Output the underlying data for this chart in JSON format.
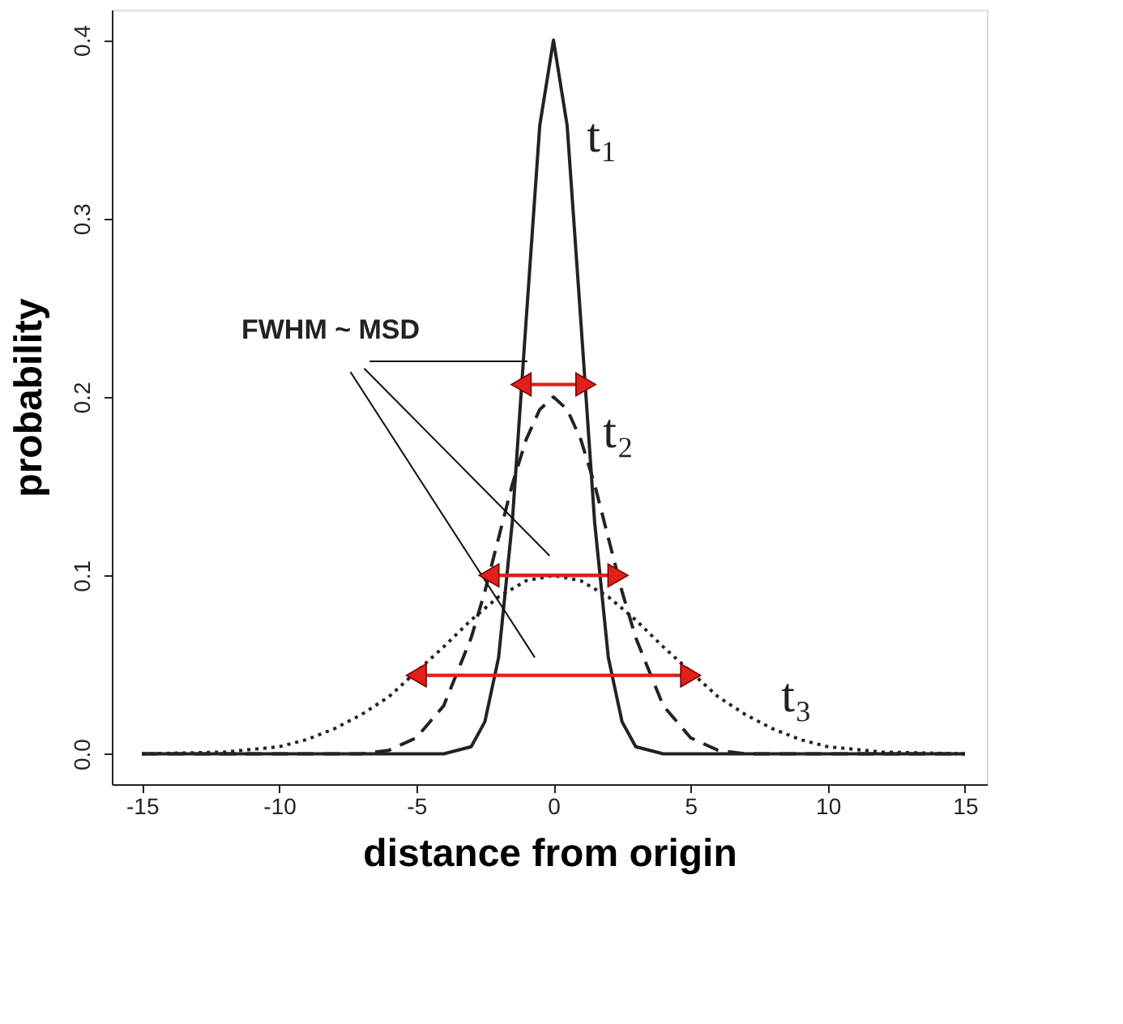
{
  "chart_data": {
    "type": "line",
    "xlabel": "distance from origin",
    "ylabel": "probability",
    "xlim": [
      -16.1,
      15.8
    ],
    "ylim": [
      -0.017,
      0.417
    ],
    "xticks": [
      -15,
      -10,
      -5,
      0,
      5,
      10,
      15
    ],
    "yticks": [
      {
        "value": 0,
        "label": "0.0"
      },
      {
        "value": 0.1,
        "label": "0.1"
      },
      {
        "value": 0.2,
        "label": "0.2"
      },
      {
        "value": 0.3,
        "label": "0.3"
      },
      {
        "value": 0.4,
        "label": "0.4"
      }
    ],
    "grid": false,
    "series": [
      {
        "name": "t₁",
        "color": "#222222",
        "line_style": "solid",
        "x": [
          -15,
          -10,
          -6,
          -4,
          -3,
          -2.5,
          -2,
          -1.5,
          -1,
          -0.5,
          0,
          0.5,
          1,
          1.5,
          2,
          2.5,
          3,
          4,
          6,
          10,
          15
        ],
        "values": [
          0,
          0,
          0,
          0,
          0.004,
          0.018,
          0.054,
          0.13,
          0.242,
          0.352,
          0.4,
          0.352,
          0.242,
          0.13,
          0.054,
          0.018,
          0.004,
          0,
          0,
          0,
          0
        ]
      },
      {
        "name": "t₂",
        "color": "#222222",
        "line_style": "dashed",
        "x": [
          -15,
          -10,
          -7,
          -6,
          -5,
          -4,
          -3,
          -2.5,
          -2,
          -1.5,
          -1,
          -0.5,
          0,
          0.5,
          1,
          1.5,
          2,
          2.5,
          3,
          4,
          5,
          6,
          7,
          10,
          15
        ],
        "values": [
          0,
          0,
          0,
          0.002,
          0.009,
          0.027,
          0.065,
          0.091,
          0.121,
          0.151,
          0.176,
          0.193,
          0.2,
          0.193,
          0.176,
          0.151,
          0.121,
          0.091,
          0.065,
          0.027,
          0.009,
          0.002,
          0,
          0,
          0
        ]
      },
      {
        "name": "t₃",
        "color": "#222222",
        "line_style": "dotted",
        "x": [
          -15,
          -12,
          -10,
          -9,
          -8,
          -7,
          -6,
          -5,
          -4,
          -3,
          -2,
          -1,
          0,
          1,
          2,
          3,
          4,
          5,
          6,
          7,
          8,
          9,
          10,
          12,
          15
        ],
        "values": [
          0,
          0.001,
          0.004,
          0.008,
          0.014,
          0.022,
          0.032,
          0.046,
          0.06,
          0.075,
          0.088,
          0.097,
          0.1,
          0.097,
          0.088,
          0.075,
          0.06,
          0.046,
          0.032,
          0.022,
          0.014,
          0.008,
          0.004,
          0.001,
          0
        ]
      },
      {
        "color": "#111111",
        "line_style": "solid",
        "x": [
          -6.7,
          -0.95
        ],
        "values": [
          0.22,
          0.22
        ]
      },
      {
        "color": "#111111",
        "line_style": "solid",
        "x": [
          -6.9,
          -0.14
        ],
        "values": [
          0.216,
          0.111
        ]
      },
      {
        "color": "#111111",
        "line_style": "solid",
        "x": [
          -7.4,
          -0.68
        ],
        "values": [
          0.214,
          0.054
        ]
      },
      {
        "color": "#e0201b",
        "line_style": "solid",
        "marker": "triangle",
        "x": [
          -1.18,
          1.18
        ],
        "values": [
          0.207,
          0.207
        ]
      },
      {
        "color": "#e0201b",
        "line_style": "solid",
        "marker": "triangle",
        "x": [
          -2.35,
          2.35
        ],
        "values": [
          0.1,
          0.1
        ]
      },
      {
        "color": "#e0201b",
        "line_style": "solid",
        "marker": "triangle",
        "x": [
          -5.0,
          5.0
        ],
        "values": [
          0.044,
          0.044
        ]
      }
    ],
    "annotations": [
      "FWHM ~ MSD"
    ]
  }
}
